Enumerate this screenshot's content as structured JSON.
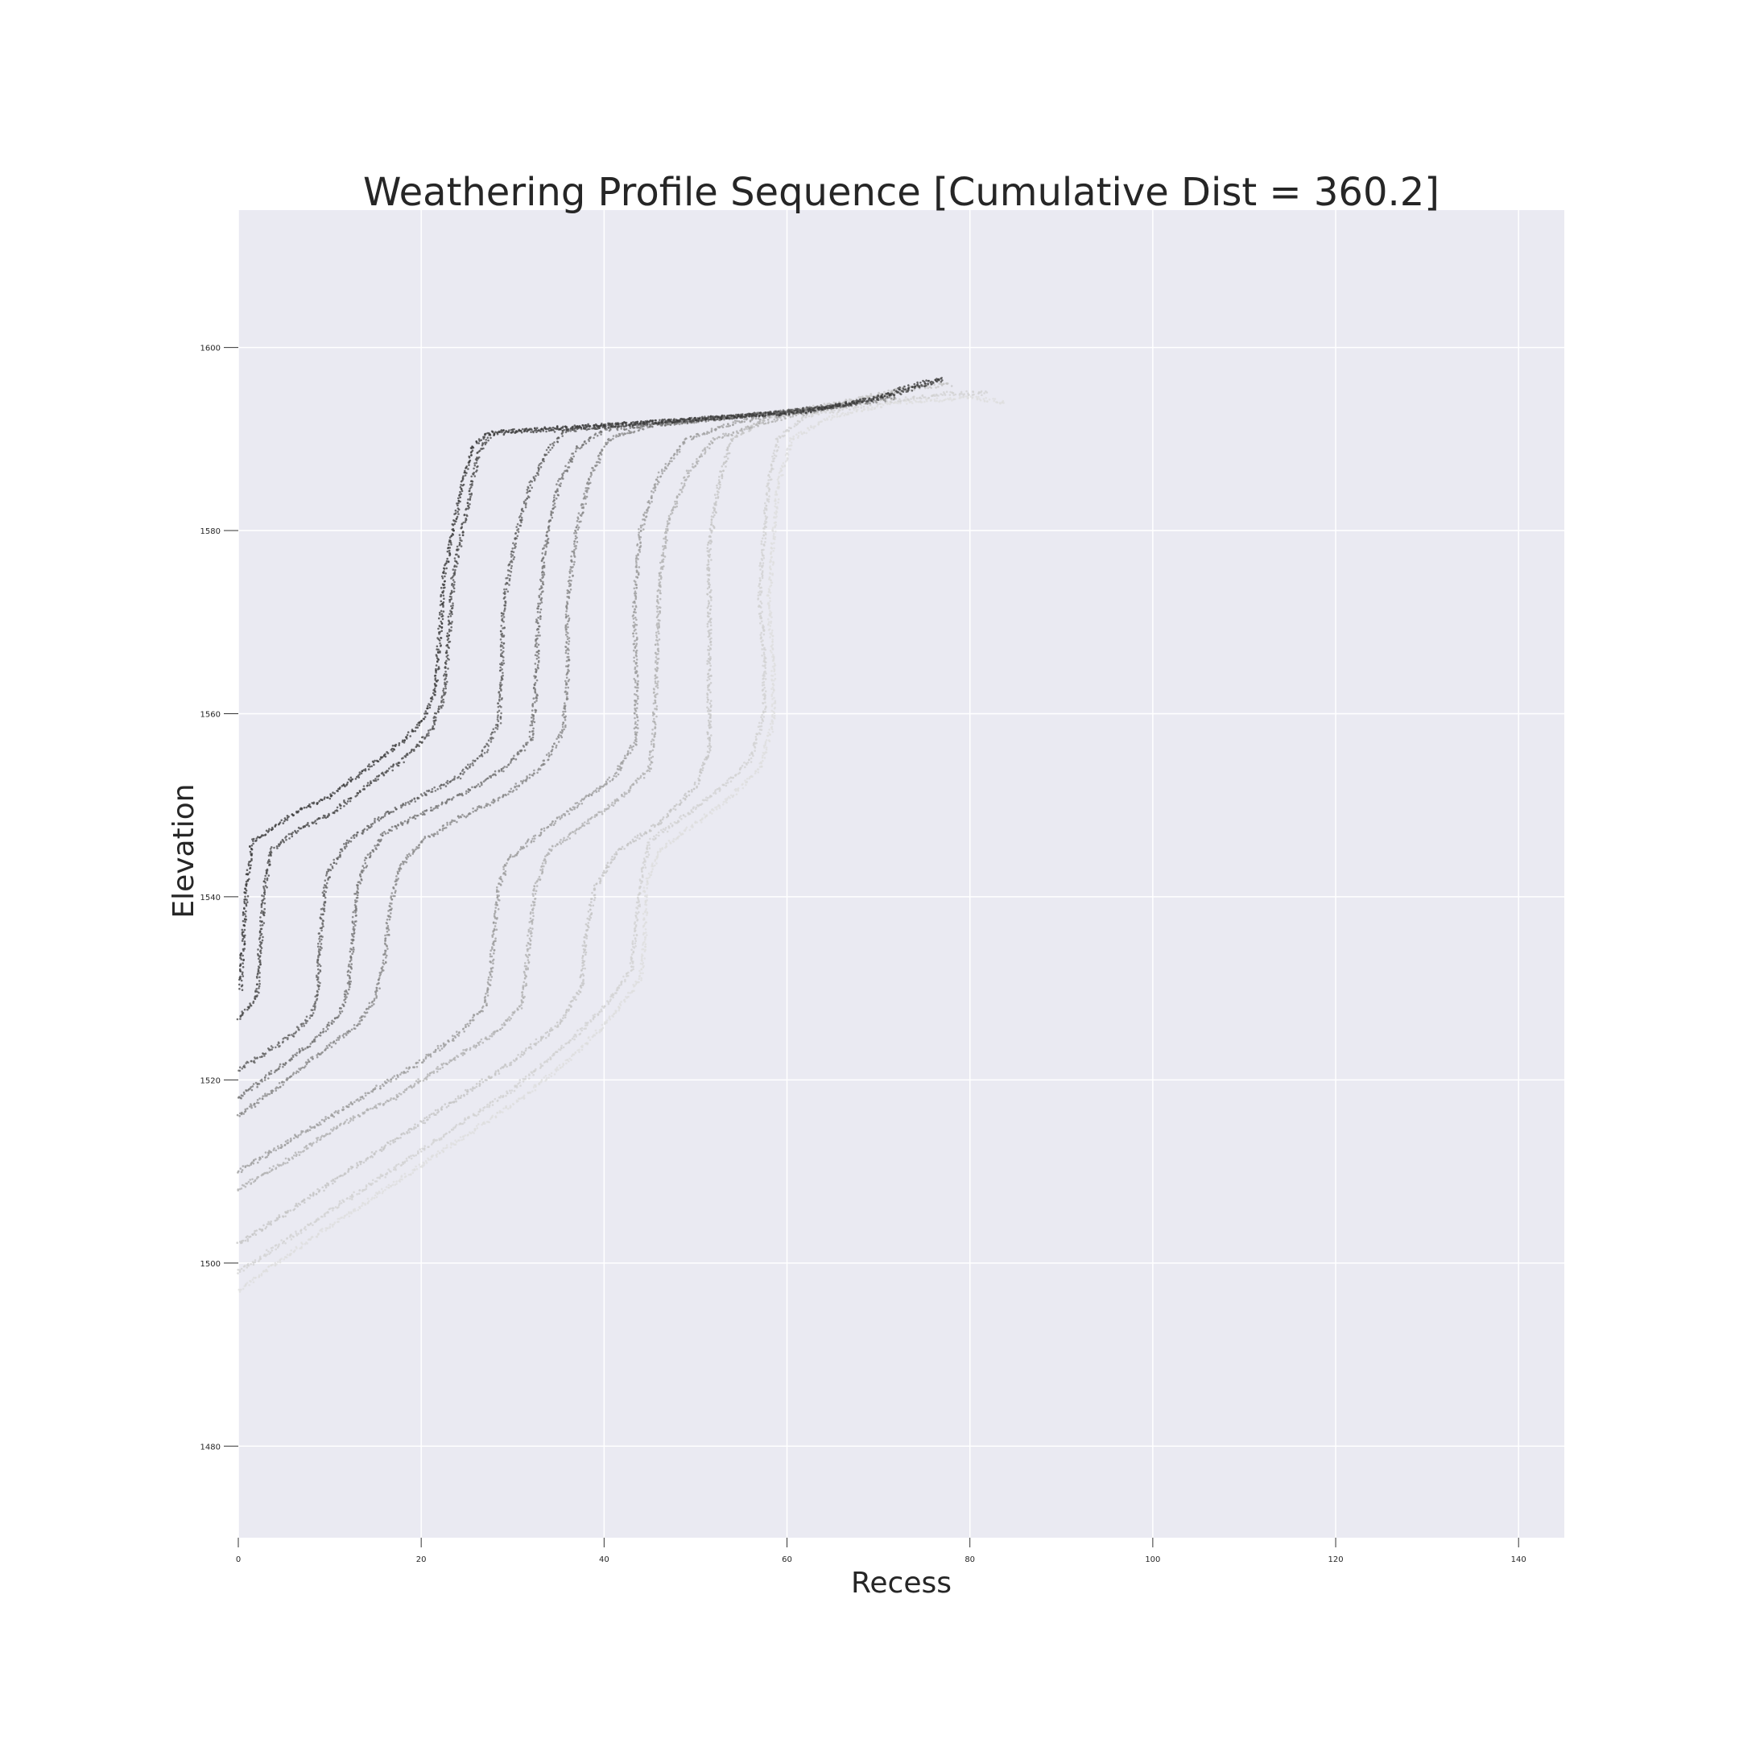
{
  "chart_data": {
    "type": "scatter",
    "title": "Weathering Profile Sequence [Cumulative Dist = 360.2]",
    "xlabel": "Recess",
    "ylabel": "Elevation",
    "xlim": [
      0,
      145
    ],
    "ylim": [
      1470,
      1615
    ],
    "xticks": [
      0,
      20,
      40,
      60,
      80,
      100,
      120,
      140
    ],
    "yticks": [
      1480,
      1500,
      1520,
      1540,
      1560,
      1580,
      1600
    ],
    "xtick_labels": [
      "0",
      "20",
      "40",
      "60",
      "80",
      "100",
      "120",
      "140"
    ],
    "ytick_labels": [
      "1480",
      "1500",
      "1520",
      "1540",
      "1560",
      "1580",
      "1600"
    ],
    "grid": true,
    "background_color": "#eaeaf2",
    "grid_color": "#ffffff",
    "series": [
      {
        "color": "#3a3a3a",
        "points": [
          [
            0.3,
            1530
          ],
          [
            0.5,
            1535
          ],
          [
            1,
            1542
          ],
          [
            1.5,
            1546
          ],
          [
            3,
            1547
          ],
          [
            6,
            1549
          ],
          [
            10,
            1551
          ],
          [
            14,
            1554
          ],
          [
            18,
            1557
          ],
          [
            20,
            1559
          ],
          [
            21.5,
            1562
          ],
          [
            22,
            1568
          ],
          [
            22.5,
            1575
          ],
          [
            23.5,
            1580
          ],
          [
            24.5,
            1585
          ],
          [
            25.5,
            1589
          ],
          [
            27,
            1590.5
          ],
          [
            30,
            1590.8
          ],
          [
            35,
            1591.2
          ],
          [
            40,
            1591.5
          ],
          [
            48,
            1592
          ],
          [
            55,
            1592.5
          ],
          [
            62,
            1593
          ],
          [
            70,
            1594.5
          ],
          [
            74,
            1596
          ],
          [
            77,
            1596.5
          ]
        ]
      },
      {
        "color": "#474747",
        "points": [
          [
            0,
            1526.5
          ],
          [
            2,
            1529
          ],
          [
            2.5,
            1536
          ],
          [
            2.8,
            1540
          ],
          [
            3.5,
            1545
          ],
          [
            6,
            1547
          ],
          [
            10,
            1549
          ],
          [
            14,
            1552
          ],
          [
            18,
            1555
          ],
          [
            21,
            1558
          ],
          [
            22.5,
            1562
          ],
          [
            23,
            1568
          ],
          [
            23.5,
            1575
          ],
          [
            24.5,
            1580
          ],
          [
            25.5,
            1585
          ],
          [
            26.5,
            1589
          ],
          [
            28,
            1590.8
          ],
          [
            35,
            1591
          ],
          [
            45,
            1591.8
          ],
          [
            55,
            1592.5
          ],
          [
            65,
            1593.5
          ],
          [
            72,
            1595
          ],
          [
            77,
            1596.5
          ]
        ]
      },
      {
        "color": "#5e5e5e",
        "points": [
          [
            0,
            1521
          ],
          [
            3,
            1523
          ],
          [
            6,
            1525
          ],
          [
            8,
            1527
          ],
          [
            8.7,
            1530
          ],
          [
            9,
            1536
          ],
          [
            9.5,
            1541
          ],
          [
            10,
            1543
          ],
          [
            12,
            1546
          ],
          [
            16,
            1549
          ],
          [
            20,
            1551
          ],
          [
            24,
            1553
          ],
          [
            27,
            1556
          ],
          [
            28.5,
            1559
          ],
          [
            28.8,
            1565
          ],
          [
            29,
            1572
          ],
          [
            30.5,
            1580
          ],
          [
            32,
            1585
          ],
          [
            34,
            1589
          ],
          [
            36,
            1591
          ],
          [
            45,
            1591.8
          ],
          [
            55,
            1592.5
          ],
          [
            65,
            1593.5
          ]
        ]
      },
      {
        "color": "#727272",
        "points": [
          [
            0,
            1518
          ],
          [
            4,
            1521
          ],
          [
            8,
            1524
          ],
          [
            11,
            1527
          ],
          [
            12,
            1530
          ],
          [
            12.5,
            1535
          ],
          [
            13,
            1541
          ],
          [
            14,
            1544
          ],
          [
            16,
            1547
          ],
          [
            20,
            1549
          ],
          [
            25,
            1551.5
          ],
          [
            29,
            1554
          ],
          [
            32,
            1557
          ],
          [
            32.5,
            1562
          ],
          [
            32.8,
            1570
          ],
          [
            33.5,
            1578
          ],
          [
            35,
            1585
          ],
          [
            37,
            1589
          ],
          [
            40,
            1591
          ],
          [
            50,
            1592
          ],
          [
            60,
            1593
          ],
          [
            68,
            1594
          ]
        ]
      },
      {
        "color": "#878787",
        "points": [
          [
            0,
            1516
          ],
          [
            4,
            1519
          ],
          [
            9,
            1523
          ],
          [
            13,
            1526
          ],
          [
            15,
            1529
          ],
          [
            16,
            1533
          ],
          [
            16.5,
            1538
          ],
          [
            17.5,
            1543
          ],
          [
            20,
            1546
          ],
          [
            24,
            1548.5
          ],
          [
            29,
            1551
          ],
          [
            33,
            1554
          ],
          [
            35.5,
            1558
          ],
          [
            36,
            1564
          ],
          [
            36,
            1572
          ],
          [
            37,
            1580
          ],
          [
            38.5,
            1586
          ],
          [
            40.5,
            1590
          ],
          [
            45,
            1591.5
          ],
          [
            55,
            1592.5
          ],
          [
            65,
            1593.5
          ],
          [
            72,
            1594.5
          ]
        ]
      },
      {
        "color": "#9b9b9b",
        "points": [
          [
            0,
            1510
          ],
          [
            5,
            1513
          ],
          [
            10,
            1516
          ],
          [
            15,
            1519
          ],
          [
            20,
            1522
          ],
          [
            24,
            1525
          ],
          [
            27,
            1528
          ],
          [
            27.5,
            1531
          ],
          [
            28,
            1536
          ],
          [
            28.5,
            1541
          ],
          [
            29.5,
            1544
          ],
          [
            33,
            1547
          ],
          [
            37,
            1550
          ],
          [
            41,
            1553
          ],
          [
            43.5,
            1557
          ],
          [
            43.5,
            1565
          ],
          [
            43.3,
            1572
          ],
          [
            44,
            1580
          ],
          [
            46,
            1586
          ],
          [
            49,
            1590
          ],
          [
            55,
            1592
          ],
          [
            62,
            1593
          ],
          [
            68,
            1594
          ]
        ]
      },
      {
        "color": "#b0b0b0",
        "points": [
          [
            0,
            1508
          ],
          [
            5,
            1511
          ],
          [
            11,
            1515
          ],
          [
            17,
            1518
          ],
          [
            23,
            1522
          ],
          [
            28,
            1525
          ],
          [
            31,
            1528
          ],
          [
            31.5,
            1532
          ],
          [
            32,
            1537
          ],
          [
            32.5,
            1541
          ],
          [
            34,
            1545
          ],
          [
            38,
            1548
          ],
          [
            42,
            1551
          ],
          [
            45,
            1554
          ],
          [
            45.5,
            1559
          ],
          [
            45.8,
            1566
          ],
          [
            46,
            1574
          ],
          [
            47,
            1581
          ],
          [
            49,
            1586
          ],
          [
            52,
            1590
          ],
          [
            58,
            1592
          ],
          [
            65,
            1593.5
          ],
          [
            72,
            1595
          ]
        ]
      },
      {
        "color": "#c4c4c4",
        "points": [
          [
            0,
            1502
          ],
          [
            6,
            1506
          ],
          [
            12,
            1510
          ],
          [
            18,
            1514
          ],
          [
            24,
            1518
          ],
          [
            30,
            1522
          ],
          [
            35,
            1526
          ],
          [
            37.5,
            1530
          ],
          [
            38,
            1536
          ],
          [
            39,
            1541
          ],
          [
            41.5,
            1545
          ],
          [
            46,
            1548
          ],
          [
            50,
            1552
          ],
          [
            51.5,
            1556
          ],
          [
            51.5,
            1562
          ],
          [
            51.5,
            1570
          ],
          [
            51.5,
            1578
          ],
          [
            52.5,
            1585
          ],
          [
            54,
            1590
          ],
          [
            58,
            1592.5
          ],
          [
            66,
            1594
          ],
          [
            73,
            1595.5
          ],
          [
            78,
            1596
          ]
        ]
      },
      {
        "color": "#d2d2d2",
        "points": [
          [
            0,
            1499
          ],
          [
            6,
            1503
          ],
          [
            12,
            1507
          ],
          [
            18,
            1511
          ],
          [
            24,
            1515
          ],
          [
            30,
            1519
          ],
          [
            36,
            1524
          ],
          [
            40,
            1528
          ],
          [
            43,
            1532
          ],
          [
            43.5,
            1537
          ],
          [
            44,
            1542
          ],
          [
            45,
            1546
          ],
          [
            49,
            1549
          ],
          [
            53,
            1552
          ],
          [
            56,
            1555
          ],
          [
            57.5,
            1560
          ],
          [
            57.5,
            1566
          ],
          [
            57,
            1573
          ],
          [
            57.5,
            1580
          ],
          [
            58,
            1585
          ],
          [
            59,
            1590
          ],
          [
            62,
            1592.5
          ],
          [
            70,
            1594
          ],
          [
            78,
            1595
          ],
          [
            82,
            1595
          ]
        ]
      },
      {
        "color": "#dedede",
        "points": [
          [
            0,
            1497
          ],
          [
            7,
            1502
          ],
          [
            13,
            1506
          ],
          [
            19,
            1510
          ],
          [
            25,
            1514
          ],
          [
            31,
            1518
          ],
          [
            37,
            1523
          ],
          [
            41,
            1527
          ],
          [
            44,
            1531
          ],
          [
            44.5,
            1536
          ],
          [
            44.5,
            1541
          ],
          [
            46,
            1545
          ],
          [
            50,
            1548
          ],
          [
            54,
            1551
          ],
          [
            57,
            1554
          ],
          [
            58.5,
            1559
          ],
          [
            58.5,
            1565
          ],
          [
            58,
            1572
          ],
          [
            58.5,
            1579
          ],
          [
            59,
            1585
          ],
          [
            60.5,
            1590
          ],
          [
            65,
            1592.5
          ],
          [
            72,
            1594
          ],
          [
            80,
            1594.5
          ],
          [
            84,
            1594
          ]
        ]
      }
    ]
  }
}
